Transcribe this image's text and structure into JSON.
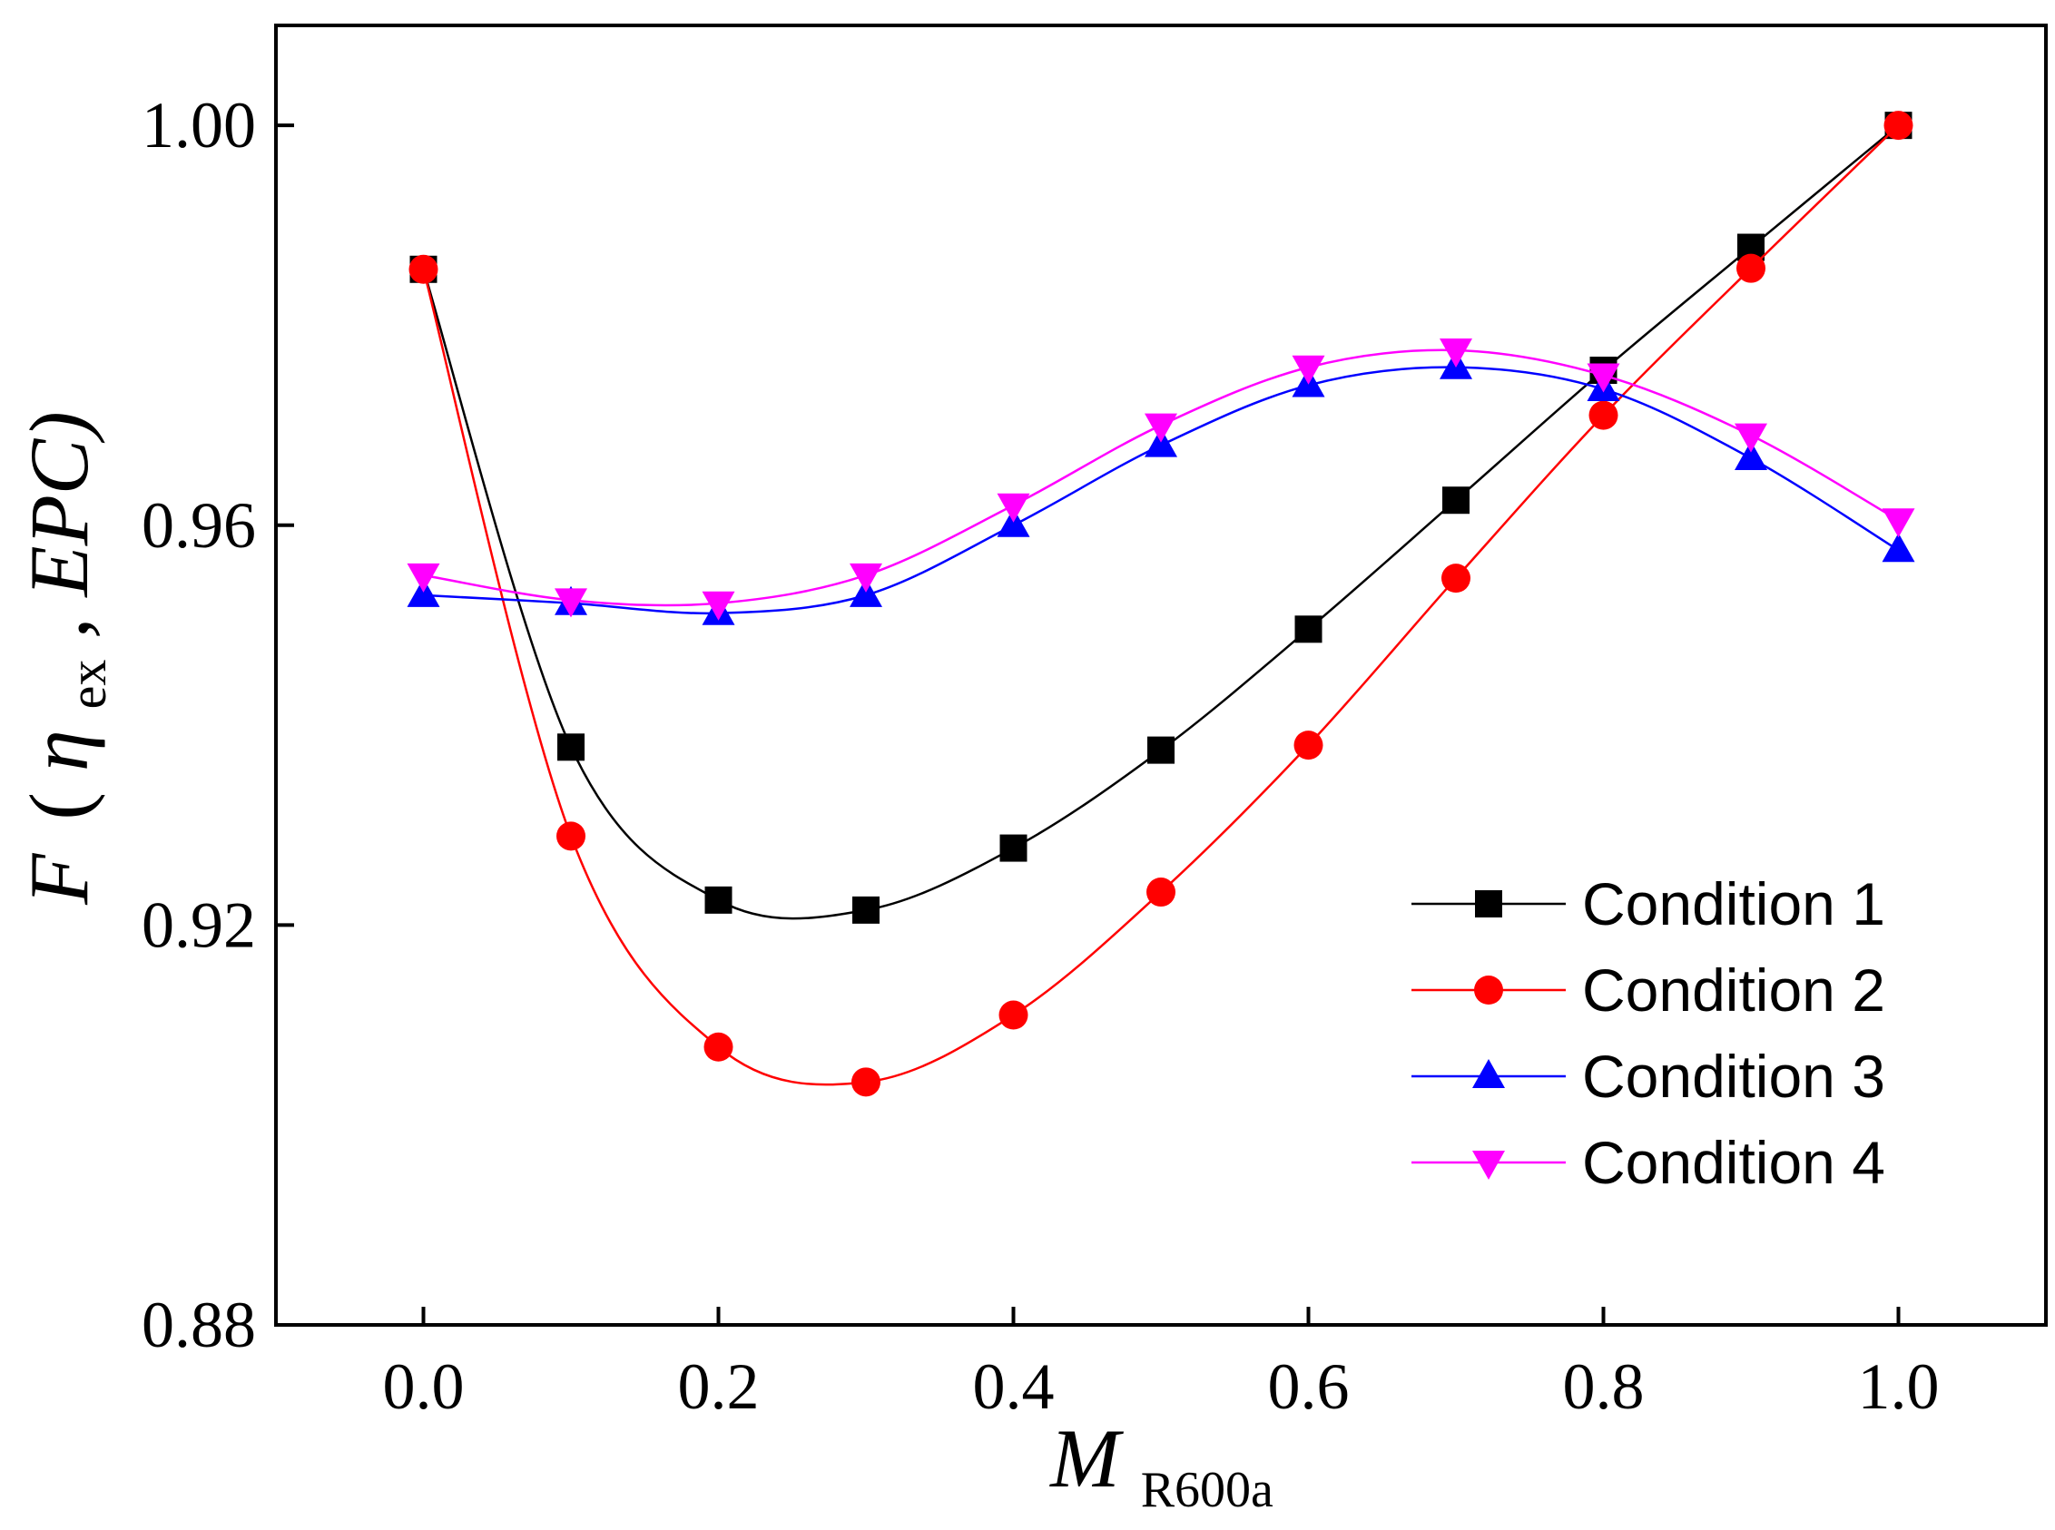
{
  "chart_data": {
    "type": "line",
    "title": "",
    "xlabel": {
      "main": "M",
      "sub": "R600a"
    },
    "ylabel": {
      "F": "F",
      "open": "(",
      "eta": "η",
      "eta_sub": "ex",
      "rest": ", EPC)"
    },
    "xlim": [
      -0.1,
      1.1
    ],
    "ylim": [
      0.88,
      1.01
    ],
    "xticks": [
      0.0,
      0.2,
      0.4,
      0.6,
      0.8,
      1.0
    ],
    "xtick_labels": [
      "0.0",
      "0.2",
      "0.4",
      "0.6",
      "0.8",
      "1.0"
    ],
    "yticks": [
      0.88,
      0.92,
      0.96,
      1.0
    ],
    "ytick_labels": [
      "0.88",
      "0.92",
      "0.96",
      "1.00"
    ],
    "grid": false,
    "legend_position": "lower-right",
    "x": [
      0.0,
      0.1,
      0.2,
      0.3,
      0.4,
      0.5,
      0.6,
      0.7,
      0.8,
      0.9,
      1.0
    ],
    "series": [
      {
        "name": "Condition 1",
        "color": "#000000",
        "marker": "square",
        "values": [
          0.9856,
          0.9378,
          0.9225,
          0.9215,
          0.9277,
          0.9375,
          0.9496,
          0.9625,
          0.9755,
          0.9878,
          1.0
        ]
      },
      {
        "name": "Condition 2",
        "color": "#ff0000",
        "marker": "circle",
        "values": [
          0.9856,
          0.9289,
          0.9078,
          0.9043,
          0.911,
          0.9233,
          0.938,
          0.9547,
          0.971,
          0.9857,
          1.0
        ]
      },
      {
        "name": "Condition 3",
        "color": "#0000ff",
        "marker": "triangle-up",
        "values": [
          0.953,
          0.9522,
          0.9512,
          0.953,
          0.96,
          0.968,
          0.974,
          0.9758,
          0.9736,
          0.9667,
          0.9575
        ]
      },
      {
        "name": "Condition 4",
        "color": "#ff00ff",
        "marker": "triangle-down",
        "values": [
          0.955,
          0.9525,
          0.9522,
          0.955,
          0.962,
          0.97,
          0.9758,
          0.9775,
          0.975,
          0.969,
          0.9605
        ]
      }
    ]
  }
}
